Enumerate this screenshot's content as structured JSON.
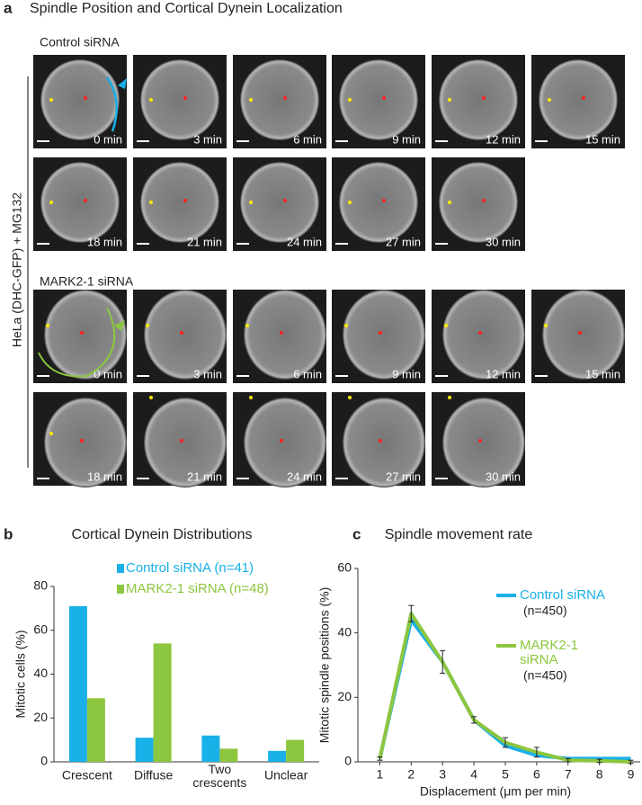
{
  "panel_a": {
    "panel_label": "a",
    "title": "Spindle Position and Cortical Dynein Localization",
    "y_label": "HeLa (DHC-GFP) + MG132",
    "groups": [
      {
        "name": "Control siRNA",
        "frames": [
          "0 min",
          "3 min",
          "6 min",
          "9 min",
          "12 min",
          "15 min",
          "18 min",
          "21 min",
          "24 min",
          "27 min",
          "30 min"
        ]
      },
      {
        "name": "MARK2-1 siRNA",
        "frames": [
          "0 min",
          "3 min",
          "6 min",
          "9 min",
          "12 min",
          "15 min",
          "18 min",
          "21 min",
          "24 min",
          "27 min",
          "30 min"
        ]
      }
    ]
  },
  "chart_data": [
    {
      "type": "bar",
      "panel_label": "b",
      "title": "Cortical Dynein Distributions",
      "y_label": "Mitotic cells (%)",
      "categories": [
        "Crescent",
        "Diffuse",
        "Two crescents",
        "Unclear"
      ],
      "series": [
        {
          "name": "Control siRNA (n=41)",
          "color": "#1ab0e8",
          "values": [
            71,
            11,
            12,
            5
          ]
        },
        {
          "name": "MARK2-1 siRNA (n=48)",
          "color": "#8dc63f",
          "values": [
            29,
            54,
            6,
            10
          ]
        }
      ],
      "ylim": [
        0,
        80
      ],
      "yticks": [
        0,
        20,
        40,
        60,
        80
      ]
    },
    {
      "type": "line",
      "panel_label": "c",
      "title": "Spindle movement rate",
      "x_label": "Displacement (μm per min)",
      "y_label": "Mitotic spindle positions (%)",
      "x": [
        1,
        2,
        3,
        4,
        5,
        6,
        7,
        8,
        9
      ],
      "series": [
        {
          "name": "Control siRNA",
          "sample_size": "(n=450)",
          "color": "#1ab0e8",
          "values": [
            1,
            44,
            31,
            13,
            5,
            2,
            1,
            1,
            1
          ]
        },
        {
          "name": "MARK2-1 siRNA",
          "sample_size": "(n=450)",
          "color": "#8dc63f",
          "values": [
            1,
            46,
            31,
            13,
            6,
            3,
            0.5,
            0.3,
            0
          ],
          "errors": [
            0.5,
            2.5,
            3.5,
            1,
            1.5,
            1.5,
            0.5,
            0.5,
            0.5
          ]
        }
      ],
      "xlim": [
        0.3,
        9.3
      ],
      "xticks": [
        1,
        2,
        3,
        4,
        5,
        6,
        7,
        8,
        9
      ],
      "ylim": [
        0,
        60
      ],
      "yticks": [
        0,
        20,
        40,
        60
      ]
    }
  ]
}
